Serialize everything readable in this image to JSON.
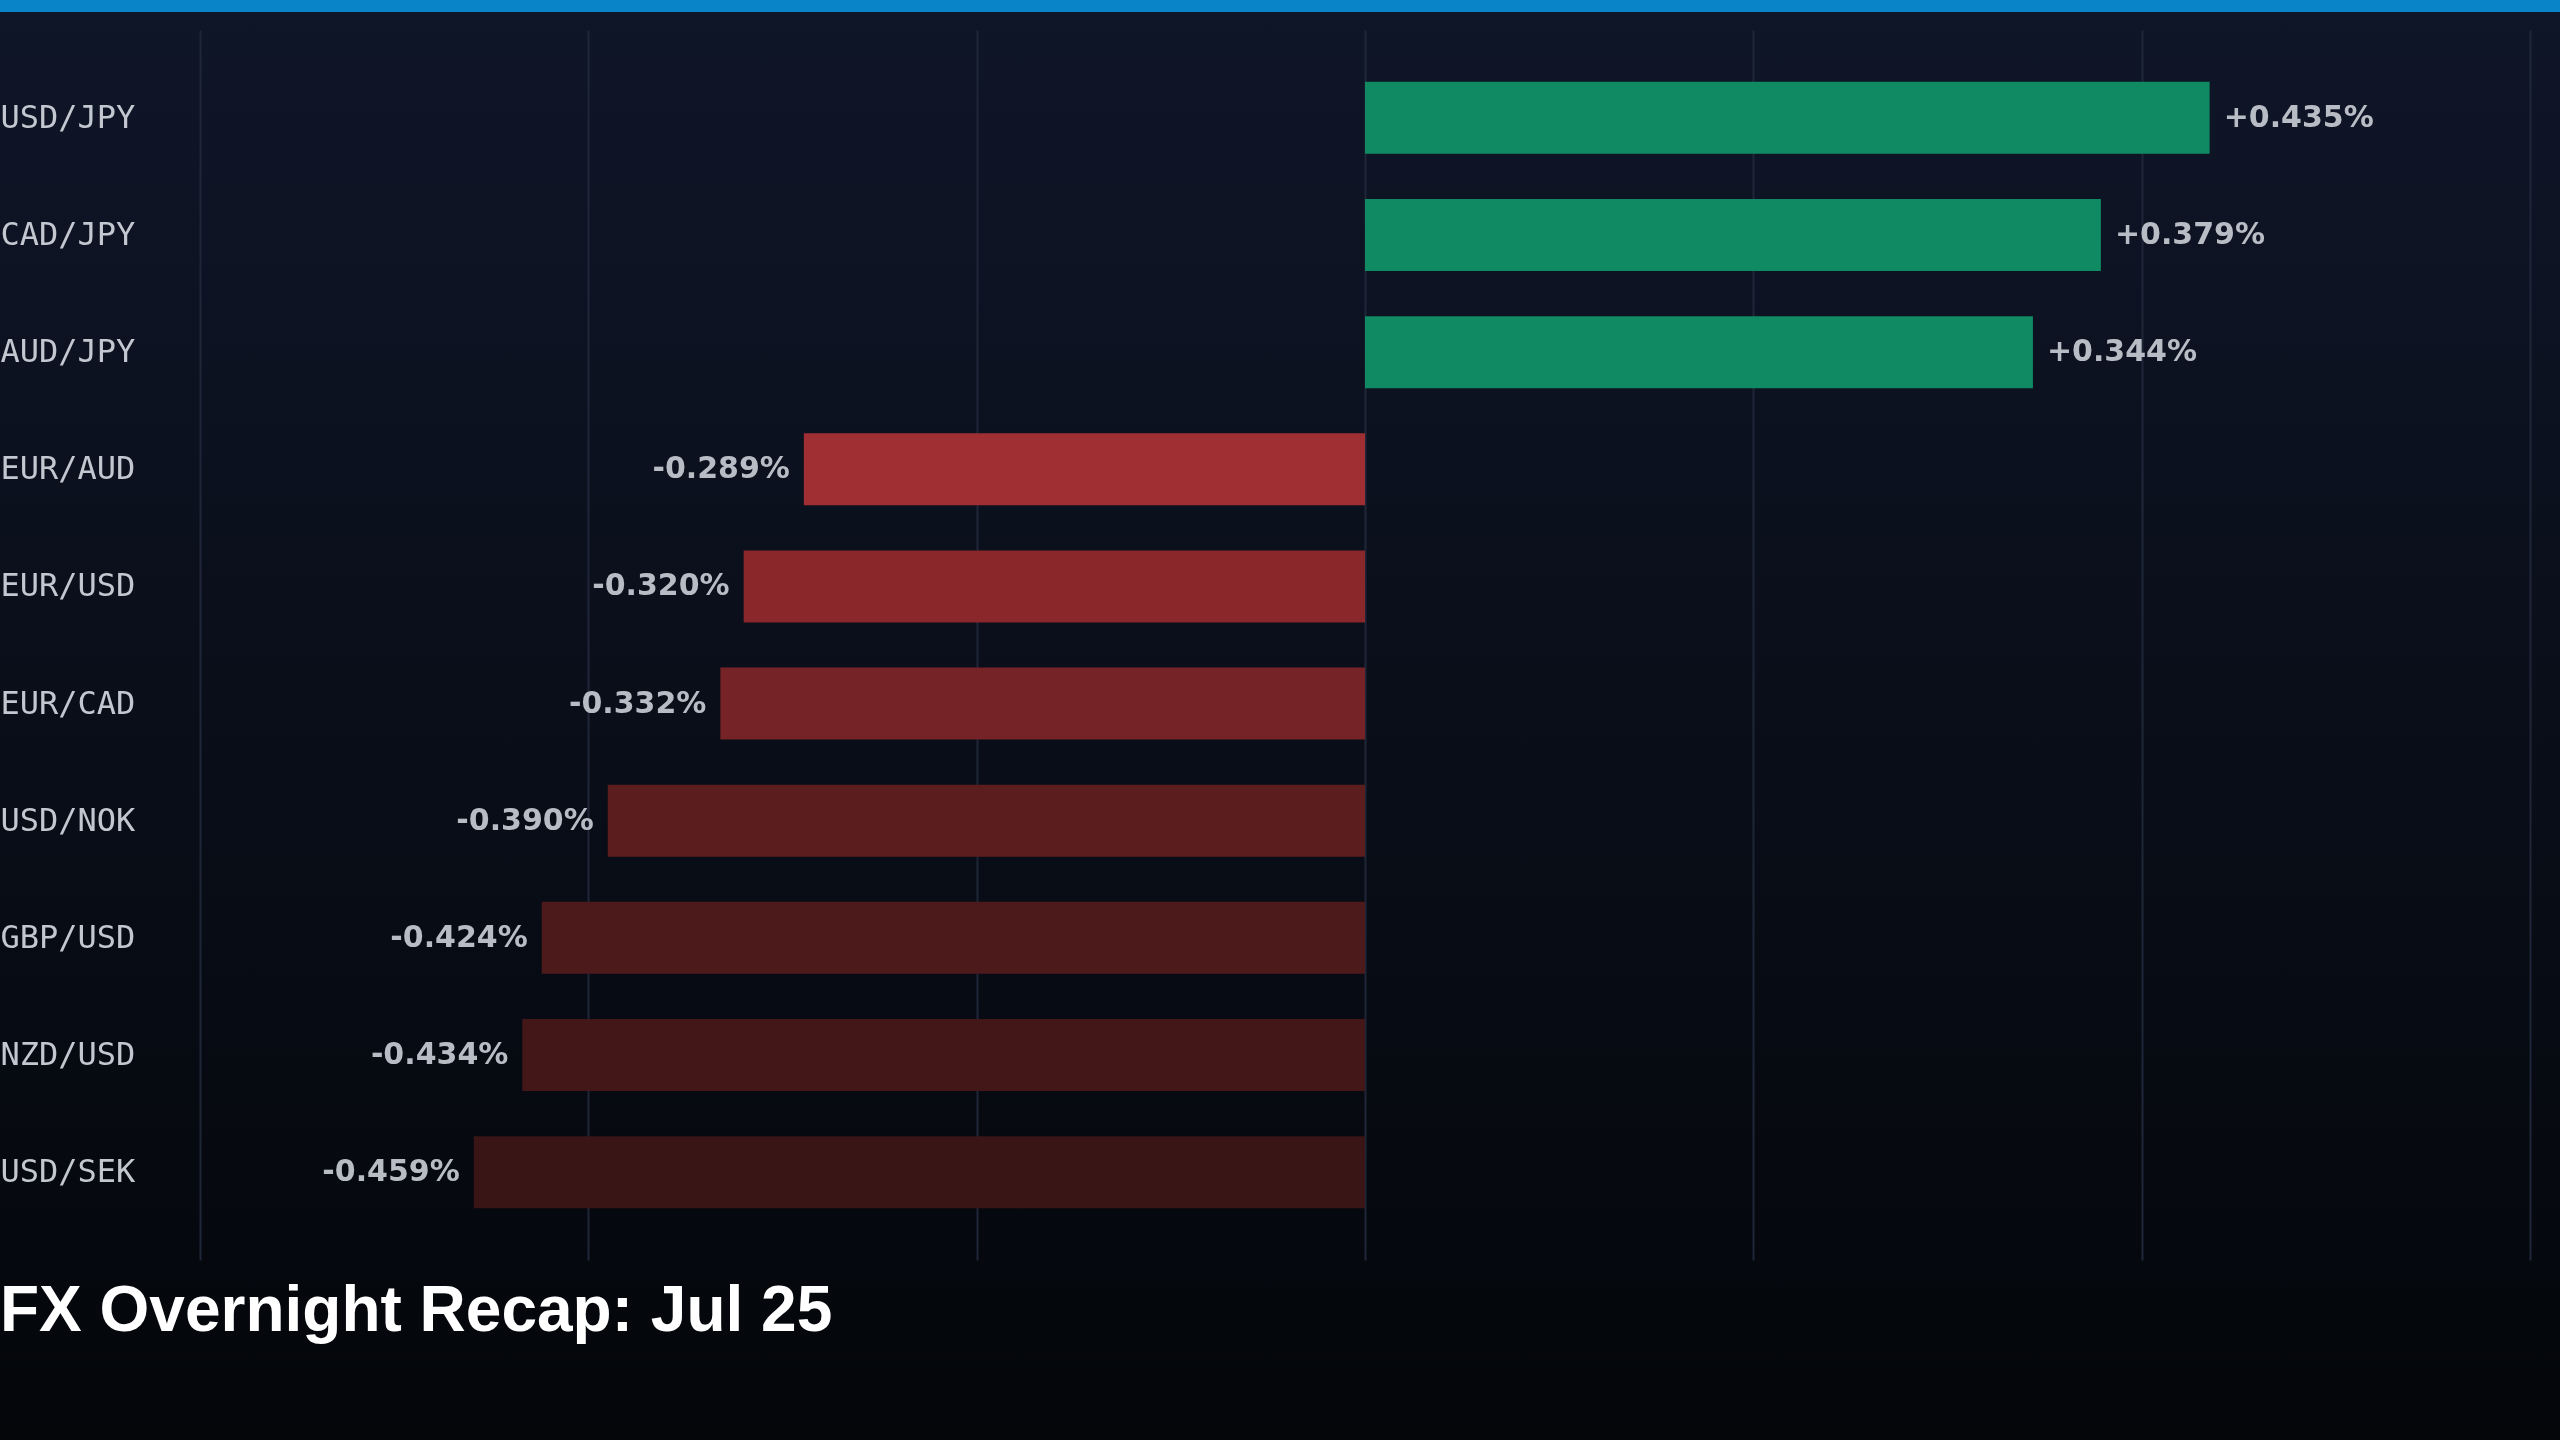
{
  "chart_data": {
    "type": "bar",
    "orientation": "horizontal",
    "title": "FX Overnight Recap: Jul 25",
    "categories": [
      "USD/JPY",
      "CAD/JPY",
      "AUD/JPY",
      "EUR/AUD",
      "EUR/USD",
      "EUR/CAD",
      "USD/NOK",
      "GBP/USD",
      "NZD/USD",
      "USD/SEK"
    ],
    "values": [
      0.435,
      0.379,
      0.344,
      -0.289,
      -0.32,
      -0.332,
      -0.39,
      -0.424,
      -0.434,
      -0.459
    ],
    "value_labels": [
      "+0.435%",
      "+0.379%",
      "+0.344%",
      "-0.289%",
      "-0.320%",
      "-0.332%",
      "-0.390%",
      "-0.424%",
      "-0.434%",
      "-0.459%"
    ],
    "colors": [
      "#0f8a62",
      "#0f8a62",
      "#0f8a62",
      "#a02f33",
      "#8a272b",
      "#752326",
      "#5c1d1f",
      "#4d1a1b",
      "#431718",
      "#3a1516"
    ],
    "grid": "x",
    "tick_labels": "y"
  }
}
